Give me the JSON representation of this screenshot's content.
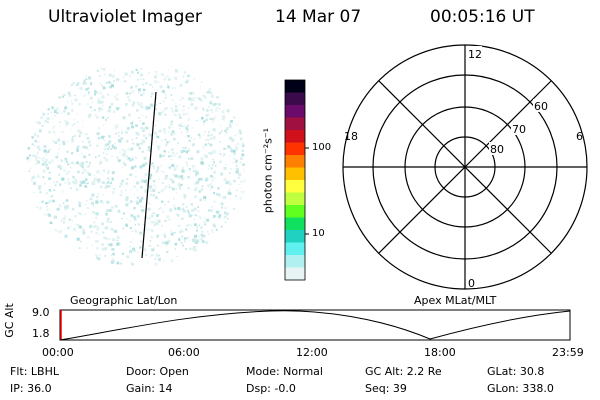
{
  "header": {
    "title": "Ultraviolet Imager",
    "date": "14 Mar 07",
    "time": "00:05:16 UT"
  },
  "colorbar": {
    "units": "photon cm⁻²s⁻¹",
    "ticks": [
      "100",
      "10"
    ],
    "colors": [
      "#000018",
      "#3a0a4a",
      "#6a0a6a",
      "#a01040",
      "#d0101a",
      "#ff3300",
      "#ff8000",
      "#ffc000",
      "#ffff40",
      "#c0ff40",
      "#60ff20",
      "#10e060",
      "#20d0c0",
      "#60f0f0",
      "#b0f0f0",
      "#e8f4f4"
    ]
  },
  "polar_plot": {
    "mlt_labels": {
      "top": "12",
      "left": "18",
      "right": "6",
      "bottom": "0"
    },
    "mlat_labels": [
      "60",
      "70",
      "80"
    ]
  },
  "timeline": {
    "ylabel": "GC Alt",
    "yticks": [
      "9.0",
      "1.8"
    ],
    "left_label": "Geographic Lat/Lon",
    "right_label": "Apex MLat/MLT",
    "xticks": [
      "00:00",
      "06:00",
      "12:00",
      "18:00",
      "23:59"
    ],
    "current_marker_color": "#ff0000"
  },
  "info": {
    "filter": "Flt: LBHL",
    "ip": "IP: 36.0",
    "door": "Door: Open",
    "gain": "Gain: 14",
    "mode": "Mode: Normal",
    "dsp": "Dsp:   -0.0",
    "gc_alt": "GC Alt: 2.2 Re",
    "seq": "Seq: 39",
    "glat": "GLat:   30.8",
    "glon": "GLon: 338.0"
  }
}
